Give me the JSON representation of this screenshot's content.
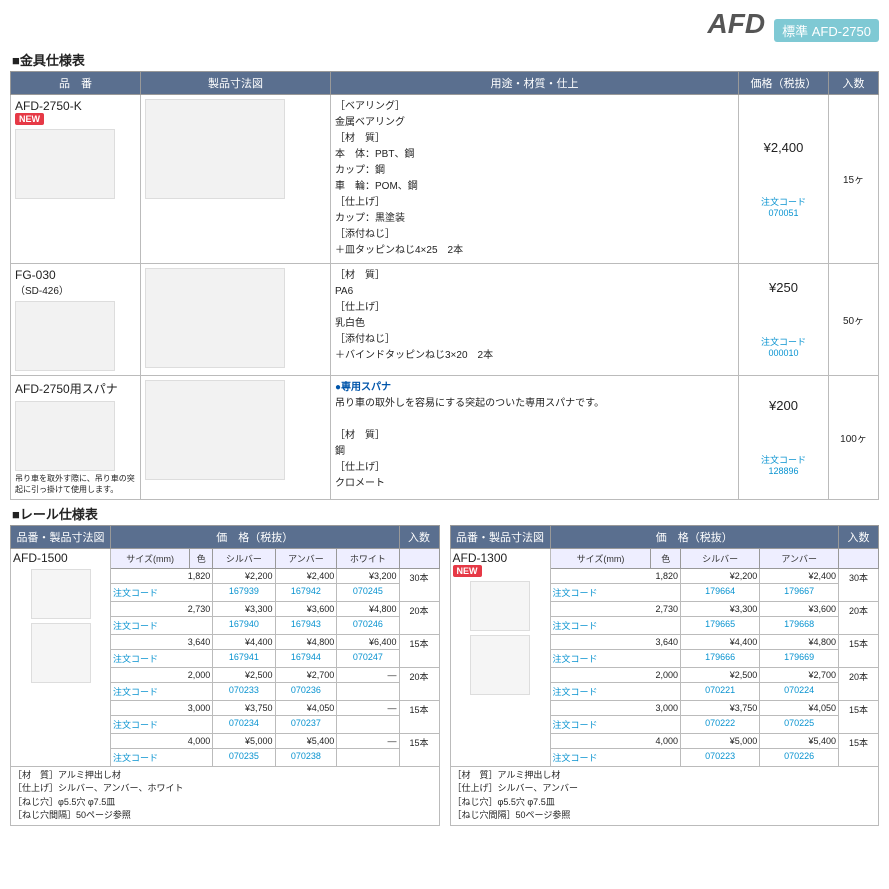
{
  "header": {
    "title": "AFD",
    "badge": "標準 AFD-2750"
  },
  "s1": {
    "title": "金具仕様表",
    "cols": [
      "品　番",
      "製品寸法図",
      "用途・材質・仕上",
      "価格（税抜）",
      "入数"
    ],
    "rows": [
      {
        "pn": "AFD-2750-K",
        "new": "NEW",
        "spec": "［ベアリング］\n金属ベアリング\n［材　質］\n本　体：PBT、鋼\nカップ：鋼\n車　輪：POM、鋼\n［仕上げ］\nカップ：黒塗装\n［添付ねじ］\n＋皿タッピンねじ4×25　2本",
        "price": "¥2,400",
        "qty": "15ヶ",
        "code": "注文コード　070051"
      },
      {
        "pn": "FG-030",
        "sub": "（SD-426）",
        "spec": "［材　質］\nPA6\n［仕上げ］\n乳白色\n［添付ねじ］\n＋バインドタッピンねじ3×20　2本",
        "price": "¥250",
        "qty": "50ヶ",
        "code": "注文コード　000010"
      },
      {
        "pn": "AFD-2750用スパナ",
        "note": "吊り車を取外す際に、吊り車の突起に引っ掛けて使用します。",
        "spec_t": "●専用スパナ",
        "spec": "吊り車の取外しを容易にする突起のついた専用スパナです。\n\n［材　質］\n鋼\n［仕上げ］\nクロメート",
        "price": "¥200",
        "qty": "100ヶ",
        "code": "注文コード　128896"
      }
    ]
  },
  "s2": {
    "title": "レール仕様表",
    "left": {
      "pn": "AFD-1500",
      "hdr1": "品番・製品寸法図",
      "hdr2": "価　格（税抜）",
      "hdr3": "入数",
      "sub": [
        "サイズ(mm)",
        "色",
        "シルバー",
        "アンバー",
        "ホワイト"
      ],
      "rows": [
        [
          "1,820",
          "",
          "¥2,200",
          "¥2,400",
          "¥3,200",
          "30本"
        ],
        [
          "注文コード",
          "",
          "167939",
          "167942",
          "070245",
          ""
        ],
        [
          "2,730",
          "",
          "¥3,300",
          "¥3,600",
          "¥4,800",
          "20本"
        ],
        [
          "注文コード",
          "",
          "167940",
          "167943",
          "070246",
          ""
        ],
        [
          "3,640",
          "",
          "¥4,400",
          "¥4,800",
          "¥6,400",
          "15本"
        ],
        [
          "注文コード",
          "",
          "167941",
          "167944",
          "070247",
          ""
        ],
        [
          "2,000",
          "",
          "¥2,500",
          "¥2,700",
          "—",
          "20本"
        ],
        [
          "注文コード",
          "",
          "070233",
          "070236",
          "",
          ""
        ],
        [
          "3,000",
          "",
          "¥3,750",
          "¥4,050",
          "—",
          "15本"
        ],
        [
          "注文コード",
          "",
          "070234",
          "070237",
          "",
          ""
        ],
        [
          "4,000",
          "",
          "¥5,000",
          "¥5,400",
          "—",
          "15本"
        ],
        [
          "注文コード",
          "",
          "070235",
          "070238",
          "",
          ""
        ]
      ],
      "foot": "［材　質］アルミ押出し材\n［仕上げ］シルバー、アンバー、ホワイト\n［ねじ穴］φ5.5穴 φ7.5皿\n［ねじ穴間隔］50ページ参照"
    },
    "right": {
      "pn": "AFD-1300",
      "new": "NEW",
      "hdr1": "品番・製品寸法図",
      "hdr2": "価　格（税抜）",
      "hdr3": "入数",
      "sub": [
        "サイズ(mm)",
        "色",
        "シルバー",
        "アンバー"
      ],
      "rows": [
        [
          "1,820",
          "",
          "¥2,200",
          "¥2,400",
          "30本"
        ],
        [
          "注文コード",
          "",
          "179664",
          "179667",
          ""
        ],
        [
          "2,730",
          "",
          "¥3,300",
          "¥3,600",
          "20本"
        ],
        [
          "注文コード",
          "",
          "179665",
          "179668",
          ""
        ],
        [
          "3,640",
          "",
          "¥4,400",
          "¥4,800",
          "15本"
        ],
        [
          "注文コード",
          "",
          "179666",
          "179669",
          ""
        ],
        [
          "2,000",
          "",
          "¥2,500",
          "¥2,700",
          "20本"
        ],
        [
          "注文コード",
          "",
          "070221",
          "070224",
          ""
        ],
        [
          "3,000",
          "",
          "¥3,750",
          "¥4,050",
          "15本"
        ],
        [
          "注文コード",
          "",
          "070222",
          "070225",
          ""
        ],
        [
          "4,000",
          "",
          "¥5,000",
          "¥5,400",
          "15本"
        ],
        [
          "注文コード",
          "",
          "070223",
          "070226",
          ""
        ]
      ],
      "foot": "［材　質］アルミ押出し材\n［仕上げ］シルバー、アンバー\n［ねじ穴］φ5.5穴 φ7.5皿\n［ねじ穴間隔］50ページ参照"
    }
  }
}
